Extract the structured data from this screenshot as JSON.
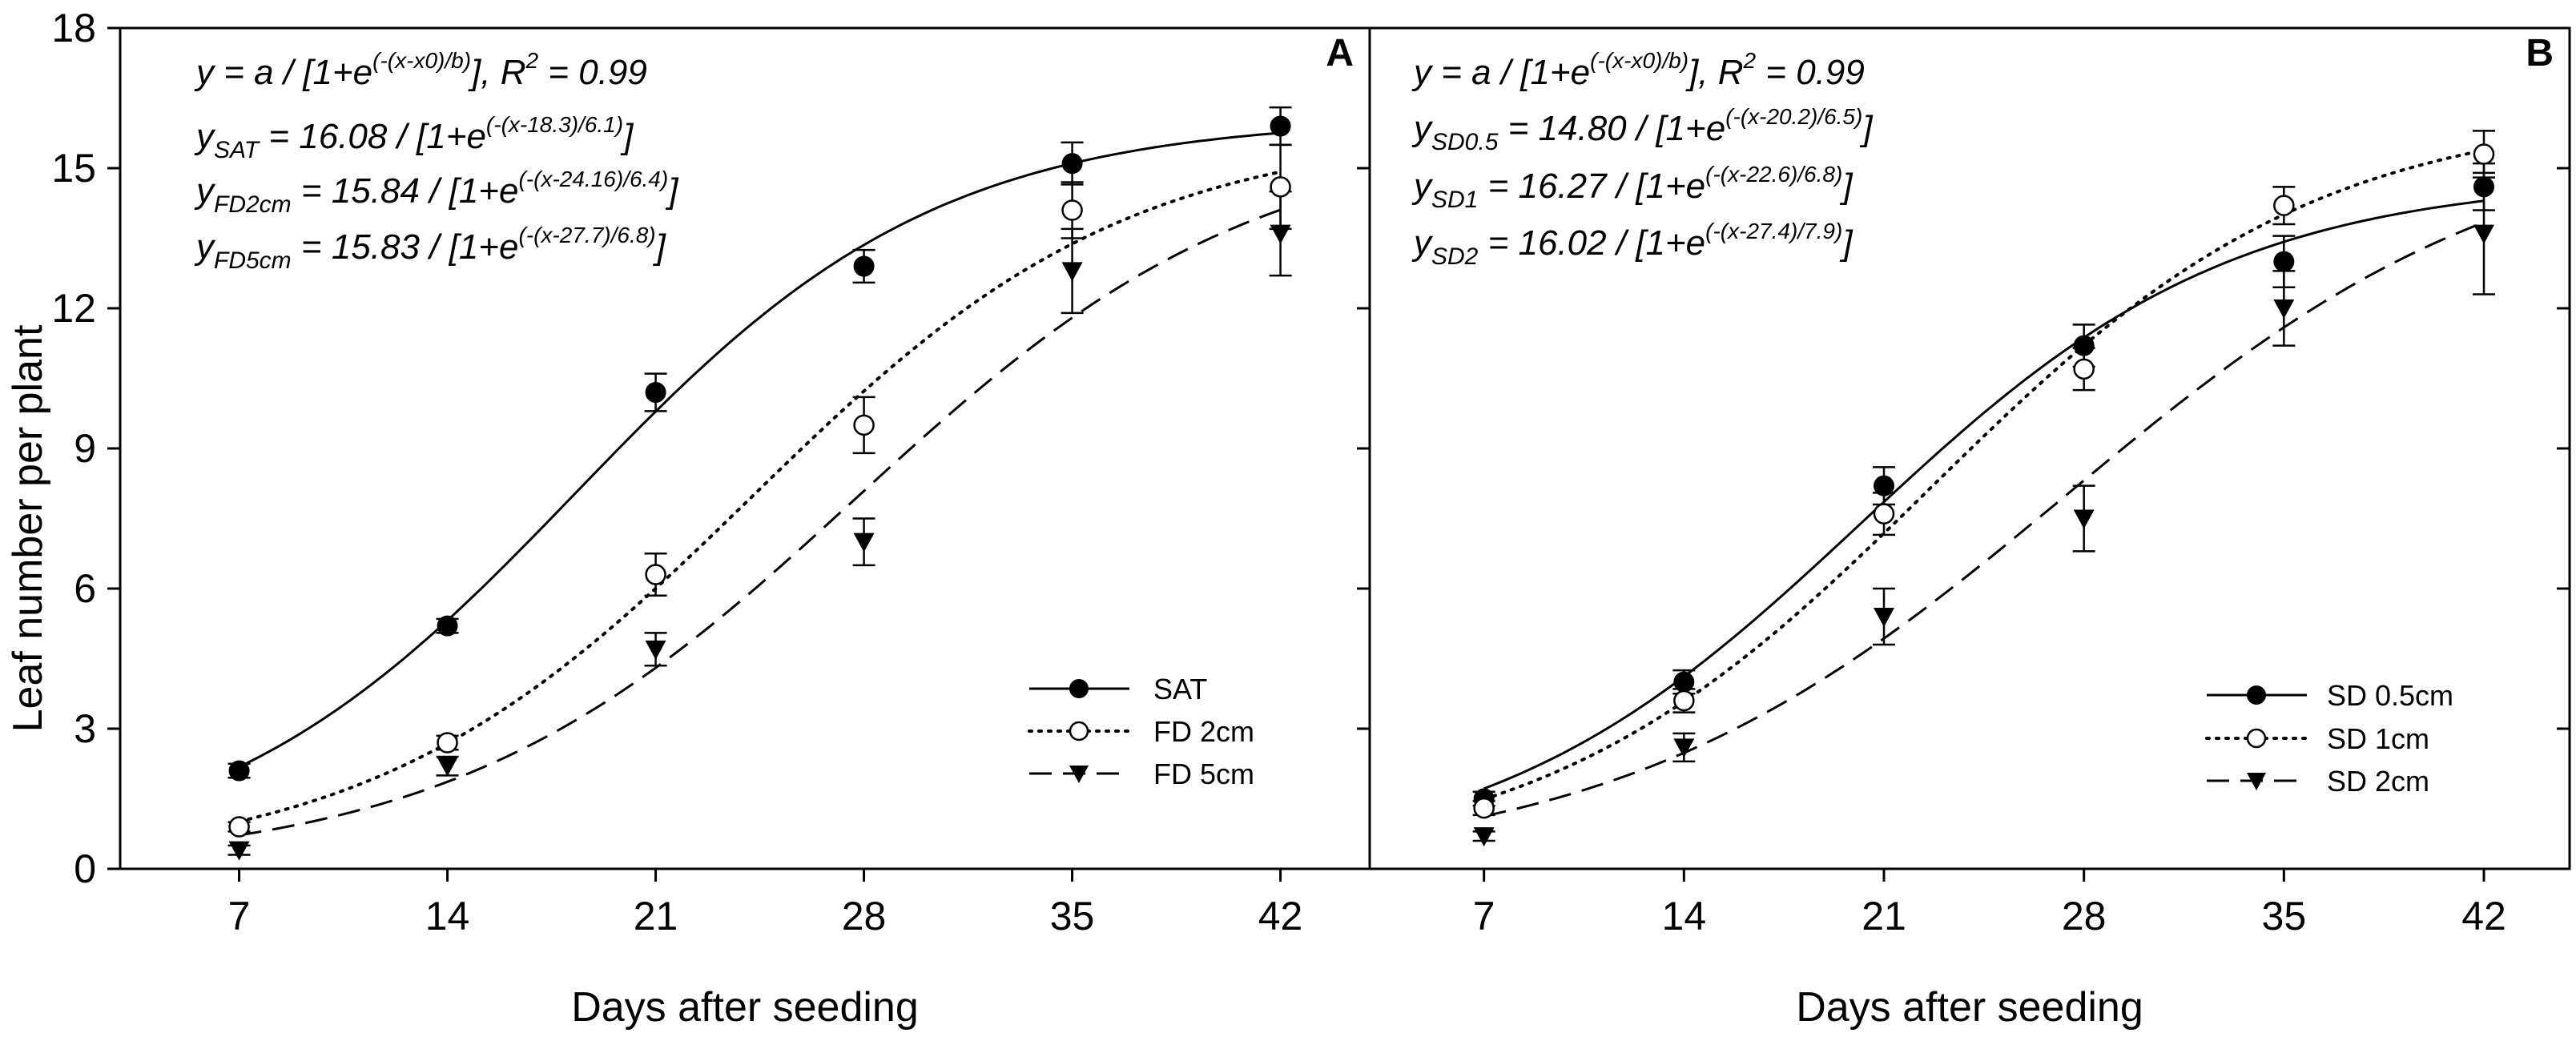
{
  "chart_data": [
    {
      "type": "scatter",
      "panel": "A",
      "xlabel": "Days after seeding",
      "ylabel": "Leaf number per plant",
      "xlim": [
        3,
        45
      ],
      "ylim": [
        0,
        18
      ],
      "xticks": [
        7,
        14,
        21,
        28,
        35,
        42
      ],
      "yticks": [
        0,
        3,
        6,
        9,
        12,
        15,
        18
      ],
      "fit_model": "logistic",
      "equations": {
        "general": {
          "lhs": "y",
          "body": " = a / [1+e",
          "exp": "(-(x-x0)/b)",
          "tail": "], R",
          "r2_sup": "2",
          "r2": " = 0.99"
        },
        "series": [
          {
            "lhs": "y",
            "sub": "SAT",
            "body": " = 16.08 / [1+e",
            "exp": "(-(x-18.3)/6.1)",
            "tail": "]"
          },
          {
            "lhs": "y",
            "sub": "FD2cm",
            "body": " = 15.84 / [1+e",
            "exp": "(-(x-24.16)/6.4)",
            "tail": "]"
          }
        ]
      },
      "series": [
        {
          "name": "SAT",
          "marker": "filled-circle",
          "line": "solid",
          "x": [
            7,
            14,
            21,
            28,
            35,
            42
          ],
          "y": [
            2.1,
            5.2,
            10.2,
            12.9,
            15.1,
            15.9
          ],
          "err": [
            0.15,
            0.15,
            0.4,
            0.35,
            0.45,
            0.4
          ],
          "fit": {
            "a": 16.08,
            "x0": 18.3,
            "b": 6.1
          }
        },
        {
          "name": "FD 2cm",
          "marker": "open-circle",
          "line": "dotted",
          "x": [
            7,
            14,
            21,
            28,
            35,
            42
          ],
          "y": [
            0.9,
            2.7,
            6.3,
            9.5,
            14.1,
            14.6
          ],
          "err": [
            0.1,
            0.15,
            0.45,
            0.6,
            0.6,
            0.9
          ],
          "fit": {
            "a": 15.84,
            "x0": 24.16,
            "b": 6.4
          }
        },
        {
          "name": "FD 5cm",
          "marker": "filled-triangle-down",
          "line": "dashed",
          "x": [
            7,
            14,
            21,
            28,
            35,
            42
          ],
          "y": [
            0.4,
            2.2,
            4.7,
            7.0,
            12.8,
            13.6
          ],
          "err": [
            0.1,
            0.2,
            0.35,
            0.5,
            0.9,
            0.9
          ],
          "fit": {
            "a": 15.83,
            "x0": 27.7,
            "b": 6.8
          }
        }
      ]
    },
    {
      "type": "scatter",
      "panel": "B",
      "xlabel": "Days after seeding",
      "ylabel": "",
      "xlim": [
        3,
        45
      ],
      "ylim": [
        0,
        18
      ],
      "xticks": [
        7,
        14,
        21,
        28,
        35,
        42
      ],
      "yticks": [
        0,
        3,
        6,
        9,
        12,
        15,
        18
      ],
      "fit_model": "logistic",
      "equations": {
        "general": {
          "lhs": "y",
          "body": " = a / [1+e",
          "exp": "(-(x-x0)/b)",
          "tail": "], R",
          "r2_sup": "2",
          "r2": " = 0.99"
        },
        "series": [
          {
            "lhs": "y",
            "sub": "SD0.5",
            "body": " = 14.80 / [1+e",
            "exp": "(-(x-20.2)/6.5)",
            "tail": "]"
          },
          {
            "lhs": "y",
            "sub": "SD1",
            "body": " = 16.27 / [1+e",
            "exp": "(-(x-22.6)/6.8)",
            "tail": "]"
          },
          {
            "lhs": "y",
            "sub": "SD2",
            "body": " = 16.02 / [1+e",
            "exp": "(-(x-27.4)/7.9)",
            "tail": "]"
          }
        ]
      },
      "series": [
        {
          "name": "SD 0.5cm",
          "marker": "filled-circle",
          "line": "solid",
          "x": [
            7,
            14,
            21,
            28,
            35,
            42
          ],
          "y": [
            1.5,
            4.0,
            8.2,
            11.2,
            13.0,
            14.6
          ],
          "err": [
            0.15,
            0.25,
            0.4,
            0.45,
            0.55,
            0.5
          ],
          "fit": {
            "a": 14.8,
            "x0": 20.2,
            "b": 6.5
          }
        },
        {
          "name": "SD 1cm",
          "marker": "open-circle",
          "line": "dotted",
          "x": [
            7,
            14,
            21,
            28,
            35,
            42
          ],
          "y": [
            1.3,
            3.6,
            7.6,
            10.7,
            14.2,
            15.3
          ],
          "err": [
            0.15,
            0.25,
            0.45,
            0.45,
            0.4,
            0.5
          ],
          "fit": {
            "a": 16.27,
            "x0": 22.6,
            "b": 6.8
          }
        },
        {
          "name": "SD 2cm",
          "marker": "filled-triangle-down",
          "line": "dashed",
          "x": [
            7,
            14,
            21,
            28,
            35,
            42
          ],
          "y": [
            0.7,
            2.6,
            5.4,
            7.5,
            12.0,
            13.6
          ],
          "err": [
            0.1,
            0.3,
            0.6,
            0.7,
            0.8,
            1.3
          ],
          "fit": {
            "a": 16.02,
            "x0": 27.4,
            "b": 7.9
          }
        }
      ]
    }
  ],
  "panel_a_extra_equation": {
    "lhs": "y",
    "sub": "FD5cm",
    "body": " = 15.83 / [1+e",
    "exp": "(-(x-27.7)/6.8)",
    "tail": "]"
  }
}
